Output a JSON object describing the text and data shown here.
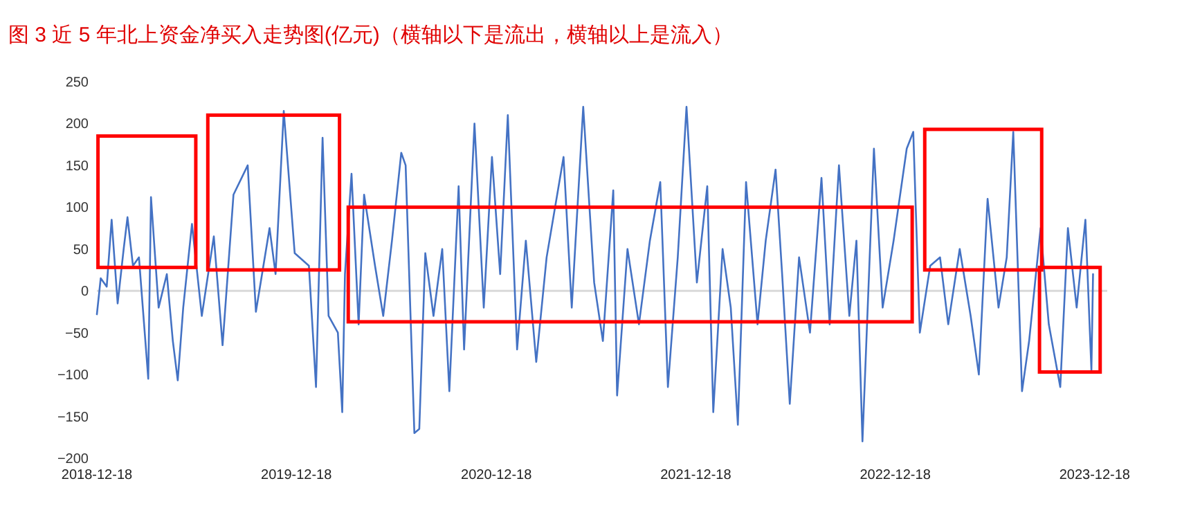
{
  "chart_data": {
    "type": "line",
    "title": "图 3 近 5 年北上资金净买入走势图(亿元)（横轴以下是流出，横轴以上是流入）",
    "x": [
      "2018-12-18",
      "2018-12-25",
      "2019-01-05",
      "2019-01-14",
      "2019-01-25",
      "2019-02-05",
      "2019-02-12",
      "2019-02-22",
      "2019-03-05",
      "2019-03-22",
      "2019-03-27",
      "2019-04-10",
      "2019-04-25",
      "2019-05-06",
      "2019-05-15",
      "2019-05-25",
      "2019-06-10",
      "2019-06-28",
      "2019-07-20",
      "2019-08-05",
      "2019-08-25",
      "2019-09-20",
      "2019-10-05",
      "2019-10-30",
      "2019-11-10",
      "2019-11-25",
      "2019-12-15",
      "2020-01-10",
      "2020-01-23",
      "2020-02-04",
      "2020-02-15",
      "2020-03-03",
      "2020-03-11",
      "2020-03-16",
      "2020-03-28",
      "2020-04-10",
      "2020-04-20",
      "2020-05-10",
      "2020-05-25",
      "2020-06-10",
      "2020-06-27",
      "2020-07-05",
      "2020-07-21",
      "2020-07-30",
      "2020-08-10",
      "2020-08-25",
      "2020-09-10",
      "2020-09-23",
      "2020-10-10",
      "2020-10-20",
      "2020-11-08",
      "2020-11-25",
      "2020-12-10",
      "2020-12-25",
      "2021-01-08",
      "2021-01-25",
      "2021-02-10",
      "2021-03-01",
      "2021-03-20",
      "2021-04-20",
      "2021-05-05",
      "2021-05-26",
      "2021-06-15",
      "2021-07-01",
      "2021-07-20",
      "2021-07-27",
      "2021-08-15",
      "2021-09-05",
      "2021-09-25",
      "2021-10-14",
      "2021-10-28",
      "2021-11-15",
      "2021-12-01",
      "2021-12-20",
      "2022-01-08",
      "2022-01-19",
      "2022-02-05",
      "2022-02-20",
      "2022-03-05",
      "2022-03-20",
      "2022-04-10",
      "2022-04-25",
      "2022-05-13",
      "2022-05-25",
      "2022-06-08",
      "2022-06-25",
      "2022-07-15",
      "2022-08-05",
      "2022-08-20",
      "2022-09-06",
      "2022-09-25",
      "2022-10-08",
      "2022-10-19",
      "2022-11-09",
      "2022-11-25",
      "2022-12-15",
      "2023-01-08",
      "2023-01-20",
      "2023-02-01",
      "2023-02-20",
      "2023-03-10",
      "2023-03-25",
      "2023-04-15",
      "2023-05-05",
      "2023-05-20",
      "2023-06-05",
      "2023-06-25",
      "2023-07-10",
      "2023-07-22",
      "2023-08-07",
      "2023-08-20",
      "2023-09-10",
      "2023-09-25",
      "2023-10-16",
      "2023-10-30",
      "2023-11-15",
      "2023-12-01",
      "2023-12-12",
      "2023-12-15"
    ],
    "series": [
      {
        "color": "#4472c4",
        "values": [
          -28,
          15,
          5,
          85,
          -15,
          50,
          88,
          30,
          40,
          -105,
          112,
          -20,
          20,
          -60,
          -107,
          -20,
          80,
          -30,
          65,
          -65,
          115,
          150,
          -25,
          75,
          20,
          215,
          45,
          30,
          -115,
          183,
          -30,
          -50,
          -145,
          20,
          140,
          -40,
          115,
          30,
          -30,
          60,
          165,
          150,
          -170,
          -165,
          45,
          -30,
          50,
          -120,
          125,
          -70,
          200,
          -20,
          160,
          20,
          210,
          -70,
          60,
          -85,
          40,
          160,
          -20,
          220,
          10,
          -60,
          120,
          -125,
          50,
          -40,
          60,
          130,
          -115,
          40,
          220,
          10,
          125,
          -145,
          50,
          -20,
          -160,
          130,
          -40,
          60,
          145,
          20,
          -135,
          40,
          -50,
          135,
          -40,
          150,
          -30,
          60,
          -180,
          170,
          -20,
          60,
          170,
          190,
          -50,
          30,
          40,
          -40,
          50,
          -30,
          -100,
          110,
          -20,
          40,
          190,
          -120,
          -60,
          75,
          -40,
          -115,
          75,
          -20,
          85,
          -95,
          20
        ]
      }
    ],
    "xlim": [
      "2018-12-18",
      "2024-01-10"
    ],
    "xticks": [
      "2018-12-18",
      "2019-12-18",
      "2020-12-18",
      "2021-12-18",
      "2022-12-18",
      "2023-12-18"
    ],
    "ylim": [
      -200,
      250
    ],
    "yticks": [
      -200,
      -150,
      -100,
      -50,
      0,
      50,
      100,
      150,
      200,
      250
    ],
    "ref_lines": [
      {
        "axis": "y",
        "value": 0,
        "color": "#d9d9d9"
      }
    ]
  }
}
